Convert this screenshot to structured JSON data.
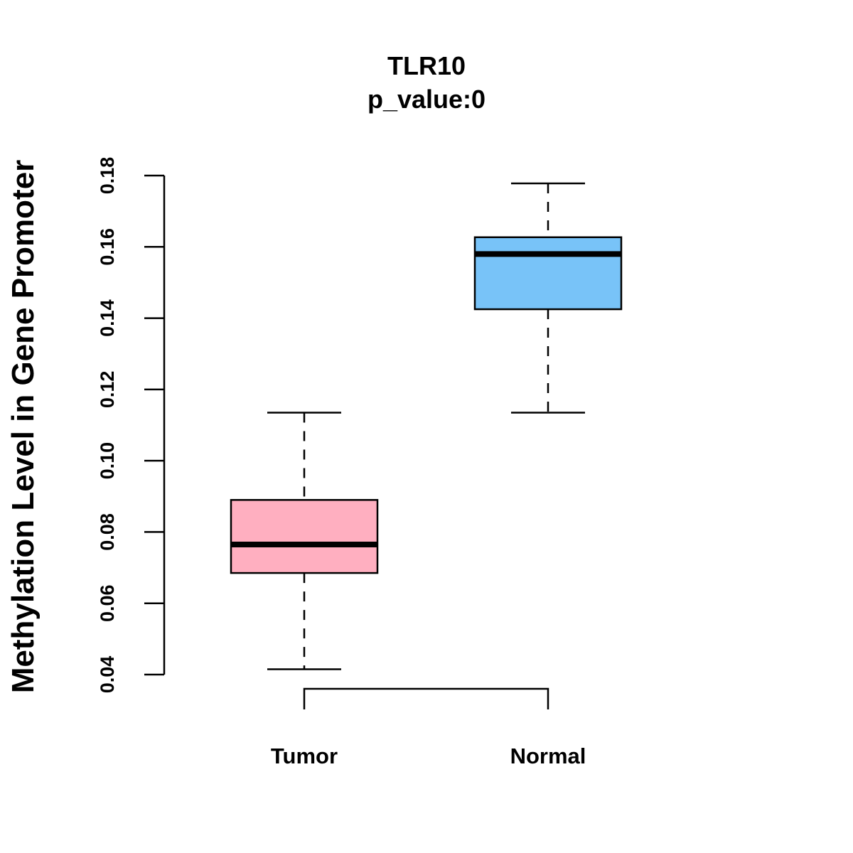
{
  "chart_data": {
    "type": "boxplot",
    "title": "TLR10",
    "subtitle": "p_value:0",
    "xlabel": "",
    "ylabel": "Methylation Level in Gene Promoter",
    "ylim": [
      0.04,
      0.18
    ],
    "yticks": [
      0.04,
      0.06,
      0.08,
      0.1,
      0.12,
      0.14,
      0.16,
      0.18
    ],
    "ytick_labels": [
      "0.04",
      "0.06",
      "0.08",
      "0.10",
      "0.12",
      "0.14",
      "0.16",
      "0.18"
    ],
    "categories": [
      "Tumor",
      "Normal"
    ],
    "series": [
      {
        "name": "Tumor",
        "min": 0.0415,
        "q1": 0.0685,
        "median": 0.0765,
        "q3": 0.089,
        "max": 0.1135,
        "color": "#FFAFC0"
      },
      {
        "name": "Normal",
        "min": 0.1135,
        "q1": 0.1425,
        "median": 0.158,
        "q3": 0.1627,
        "max": 0.1778,
        "color": "#78C3F8"
      }
    ],
    "significance_bracket": {
      "from": "Tumor",
      "to": "Normal",
      "label": ""
    },
    "grid": false
  }
}
